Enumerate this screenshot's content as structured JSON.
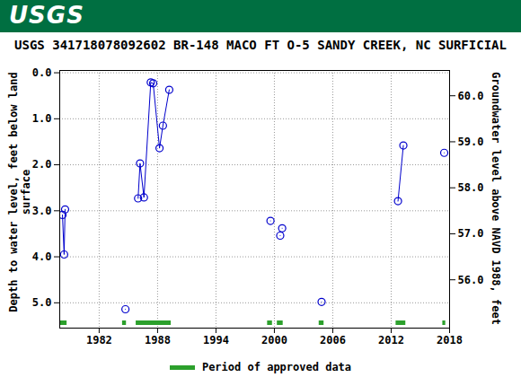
{
  "chart_data": {
    "type": "line",
    "logo": "USGS",
    "title": "USGS 341718078092602 BR-148 MACO FT O-5 SANDY CREEK, NC SURFICIAL",
    "ylabel": "Depth to water level, feet below land surface",
    "y2label": "Groundwater level above NAVD 1988, feet",
    "x": [
      1978.23,
      1978.4,
      1978.5,
      1981,
      1984.7,
      1985.3,
      1986.0,
      1986.2,
      1986.6,
      1987.3,
      1987.55,
      1988.2,
      1988.55,
      1989.2,
      1994,
      1999.6,
      2000.1,
      2000.6,
      2000.7,
      2000.8,
      2003,
      2004.85,
      2008,
      2012.7,
      2013.25,
      2015,
      2017.45
    ],
    "values": [
      3.09,
      3.95,
      2.97,
      null,
      5.14,
      null,
      2.73,
      1.97,
      2.71,
      0.21,
      0.23,
      1.64,
      1.15,
      0.37,
      null,
      3.22,
      null,
      3.54,
      null,
      3.38,
      null,
      4.98,
      null,
      2.79,
      1.58,
      null,
      1.74
    ],
    "color": "#0000cc",
    "marker": "circle",
    "line_style": "solid",
    "approved_periods": {
      "name": "Period of approved data",
      "color": "#2ca02c",
      "ranges": [
        [
          1977.95,
          1978.7
        ],
        [
          1984.4,
          1984.8
        ],
        [
          1985.8,
          1989.4
        ],
        [
          1999.3,
          1999.8
        ],
        [
          2000.3,
          2000.9
        ],
        [
          2004.6,
          2005.1
        ],
        [
          2012.5,
          2013.5
        ],
        [
          2017.3,
          2017.6
        ]
      ]
    },
    "xlim": [
      1977.95,
      2018
    ],
    "xticks": [
      1982,
      1988,
      1994,
      2000,
      2006,
      2012,
      2018
    ],
    "ylim": [
      -0.05,
      5.55
    ],
    "yticks": [
      {
        "value": 0,
        "label": "0.0"
      },
      {
        "value": 1,
        "label": "1.0"
      },
      {
        "value": 2,
        "label": "2.0"
      },
      {
        "value": 3,
        "label": "3.0"
      },
      {
        "value": 4,
        "label": "4.0"
      },
      {
        "value": 5,
        "label": "5.0"
      }
    ],
    "y2lim": [
      60.55,
      54.95
    ],
    "y2ticks": [
      {
        "value": 56,
        "label": "56.0"
      },
      {
        "value": 57,
        "label": "57.0"
      },
      {
        "value": 58,
        "label": "58.0"
      },
      {
        "value": 59,
        "label": "59.0"
      },
      {
        "value": 60,
        "label": "60.0"
      }
    ],
    "grid": true,
    "legend": "bottom"
  }
}
